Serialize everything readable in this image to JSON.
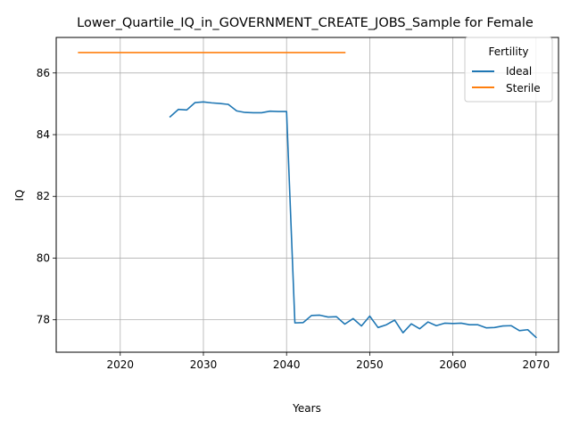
{
  "chart_data": {
    "type": "line",
    "title": "Lower_Quartile_IQ_in_GOVERNMENT_CREATE_JOBS_Sample for Female",
    "xlabel": "Years",
    "ylabel": "IQ",
    "xlim": [
      2012.3,
      2072.7
    ],
    "ylim": [
      76.95,
      87.15
    ],
    "xticks": [
      2020,
      2030,
      2040,
      2050,
      2060,
      2070
    ],
    "yticks": [
      78,
      80,
      82,
      84,
      86
    ],
    "grid": true,
    "legend": {
      "title": "Fertility",
      "placement": "top-right"
    },
    "series": [
      {
        "name": "Ideal",
        "color": "#1f77b4",
        "x": [
          2026,
          2027,
          2028,
          2029,
          2030,
          2031,
          2032,
          2033,
          2034,
          2035,
          2036,
          2037,
          2038,
          2039,
          2040,
          2041,
          2042,
          2043,
          2044,
          2045,
          2046,
          2047,
          2048,
          2049,
          2050,
          2051,
          2052,
          2053,
          2054,
          2055,
          2056,
          2057,
          2058,
          2059,
          2060,
          2061,
          2062,
          2063,
          2064,
          2065,
          2066,
          2067,
          2068,
          2069,
          2070
        ],
        "y": [
          84.58,
          84.82,
          84.8,
          85.04,
          85.06,
          85.03,
          85.01,
          84.98,
          84.77,
          84.72,
          84.71,
          84.71,
          84.76,
          84.75,
          84.75,
          77.9,
          77.91,
          78.14,
          78.15,
          78.09,
          78.1,
          77.86,
          78.04,
          77.8,
          78.12,
          77.75,
          77.84,
          77.99,
          77.58,
          77.87,
          77.71,
          77.93,
          77.81,
          77.89,
          77.88,
          77.89,
          77.84,
          77.84,
          77.74,
          77.75,
          77.8,
          77.81,
          77.65,
          77.68,
          77.43
        ]
      },
      {
        "name": "Sterile",
        "color": "#ff7f0e",
        "x": [
          2015,
          2047
        ],
        "y": [
          86.66,
          86.66
        ]
      }
    ]
  }
}
